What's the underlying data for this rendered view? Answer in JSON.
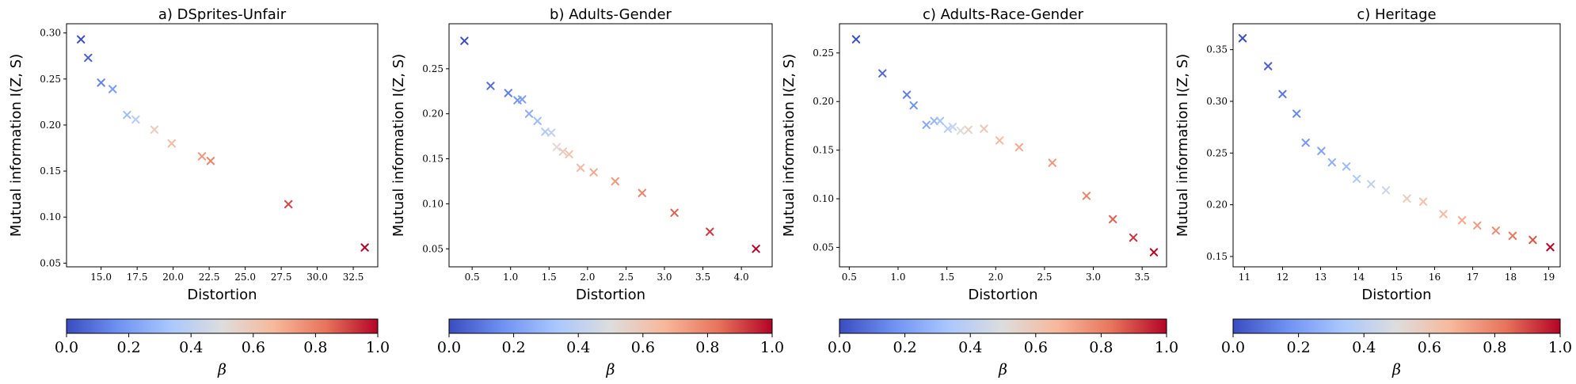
{
  "chart_data": [
    {
      "type": "scatter",
      "title": "a) DSprites-Unfair",
      "xlabel": "Distortion",
      "ylabel": "Mutual information I(Z, S)",
      "xlim": [
        12.6,
        34.2
      ],
      "ylim": [
        0.046,
        0.31
      ],
      "xticks": [
        15.0,
        17.5,
        20.0,
        22.5,
        25.0,
        27.5,
        30.0,
        32.5
      ],
      "xtick_labels": [
        "15.0",
        "17.5",
        "20.0",
        "22.5",
        "25.0",
        "27.5",
        "30.0",
        "32.5"
      ],
      "yticks": [
        0.05,
        0.1,
        0.15,
        0.2,
        0.25,
        0.3
      ],
      "ytick_labels": [
        "0.05",
        "0.10",
        "0.15",
        "0.20",
        "0.25",
        "0.30"
      ],
      "marker": "x",
      "points": [
        {
          "x": 13.6,
          "y": 0.293,
          "beta": 0.0
        },
        {
          "x": 14.1,
          "y": 0.273,
          "beta": 0.05
        },
        {
          "x": 15.0,
          "y": 0.246,
          "beta": 0.13
        },
        {
          "x": 15.8,
          "y": 0.239,
          "beta": 0.2
        },
        {
          "x": 16.8,
          "y": 0.211,
          "beta": 0.3
        },
        {
          "x": 17.4,
          "y": 0.206,
          "beta": 0.38
        },
        {
          "x": 18.7,
          "y": 0.195,
          "beta": 0.58
        },
        {
          "x": 19.9,
          "y": 0.18,
          "beta": 0.65
        },
        {
          "x": 22.0,
          "y": 0.166,
          "beta": 0.75
        },
        {
          "x": 22.6,
          "y": 0.161,
          "beta": 0.8
        },
        {
          "x": 28.0,
          "y": 0.114,
          "beta": 0.9
        },
        {
          "x": 33.3,
          "y": 0.067,
          "beta": 1.0
        }
      ]
    },
    {
      "type": "scatter",
      "title": "b) Adults-Gender",
      "xlabel": "Distortion",
      "ylabel": "Mutual information I(Z, S)",
      "xlim": [
        0.2,
        4.4
      ],
      "ylim": [
        0.03,
        0.3
      ],
      "xticks": [
        0.5,
        1.0,
        1.5,
        2.0,
        2.5,
        3.0,
        3.5,
        4.0
      ],
      "xtick_labels": [
        "0.5",
        "1.0",
        "1.5",
        "2.0",
        "2.5",
        "3.0",
        "3.5",
        "4.0"
      ],
      "yticks": [
        0.05,
        0.1,
        0.15,
        0.2,
        0.25
      ],
      "ytick_labels": [
        "0.05",
        "0.10",
        "0.15",
        "0.20",
        "0.25"
      ],
      "marker": "x",
      "points": [
        {
          "x": 0.4,
          "y": 0.281,
          "beta": 0.0
        },
        {
          "x": 0.74,
          "y": 0.231,
          "beta": 0.08
        },
        {
          "x": 0.97,
          "y": 0.223,
          "beta": 0.12
        },
        {
          "x": 1.09,
          "y": 0.215,
          "beta": 0.18
        },
        {
          "x": 1.15,
          "y": 0.216,
          "beta": 0.2
        },
        {
          "x": 1.24,
          "y": 0.2,
          "beta": 0.25
        },
        {
          "x": 1.35,
          "y": 0.192,
          "beta": 0.3
        },
        {
          "x": 1.45,
          "y": 0.18,
          "beta": 0.35
        },
        {
          "x": 1.53,
          "y": 0.179,
          "beta": 0.4
        },
        {
          "x": 1.6,
          "y": 0.163,
          "beta": 0.52
        },
        {
          "x": 1.68,
          "y": 0.158,
          "beta": 0.58
        },
        {
          "x": 1.76,
          "y": 0.155,
          "beta": 0.62
        },
        {
          "x": 1.91,
          "y": 0.14,
          "beta": 0.66
        },
        {
          "x": 2.08,
          "y": 0.135,
          "beta": 0.7
        },
        {
          "x": 2.36,
          "y": 0.125,
          "beta": 0.75
        },
        {
          "x": 2.71,
          "y": 0.112,
          "beta": 0.8
        },
        {
          "x": 3.13,
          "y": 0.09,
          "beta": 0.86
        },
        {
          "x": 3.59,
          "y": 0.069,
          "beta": 0.92
        },
        {
          "x": 4.19,
          "y": 0.05,
          "beta": 1.0
        }
      ]
    },
    {
      "type": "scatter",
      "title": "c) Adults-Race-Gender",
      "xlabel": "Distortion",
      "ylabel": "Mutual information I(Z, S)",
      "xlim": [
        0.4,
        3.75
      ],
      "ylim": [
        0.03,
        0.28
      ],
      "xticks": [
        0.5,
        1.0,
        1.5,
        2.0,
        2.5,
        3.0,
        3.5
      ],
      "xtick_labels": [
        "0.5",
        "1.0",
        "1.5",
        "2.0",
        "2.5",
        "3.0",
        "3.5"
      ],
      "yticks": [
        0.05,
        0.1,
        0.15,
        0.2,
        0.25
      ],
      "ytick_labels": [
        "0.05",
        "0.10",
        "0.15",
        "0.20",
        "0.25"
      ],
      "marker": "x",
      "points": [
        {
          "x": 0.57,
          "y": 0.264,
          "beta": 0.0
        },
        {
          "x": 0.84,
          "y": 0.229,
          "beta": 0.07
        },
        {
          "x": 1.09,
          "y": 0.207,
          "beta": 0.12
        },
        {
          "x": 1.16,
          "y": 0.196,
          "beta": 0.17
        },
        {
          "x": 1.29,
          "y": 0.176,
          "beta": 0.24
        },
        {
          "x": 1.37,
          "y": 0.18,
          "beta": 0.28
        },
        {
          "x": 1.43,
          "y": 0.18,
          "beta": 0.32
        },
        {
          "x": 1.51,
          "y": 0.172,
          "beta": 0.37
        },
        {
          "x": 1.56,
          "y": 0.174,
          "beta": 0.42
        },
        {
          "x": 1.64,
          "y": 0.17,
          "beta": 0.5
        },
        {
          "x": 1.72,
          "y": 0.171,
          "beta": 0.56
        },
        {
          "x": 1.88,
          "y": 0.172,
          "beta": 0.6
        },
        {
          "x": 2.04,
          "y": 0.16,
          "beta": 0.66
        },
        {
          "x": 2.24,
          "y": 0.153,
          "beta": 0.7
        },
        {
          "x": 2.58,
          "y": 0.137,
          "beta": 0.75
        },
        {
          "x": 2.93,
          "y": 0.103,
          "beta": 0.8
        },
        {
          "x": 3.2,
          "y": 0.079,
          "beta": 0.86
        },
        {
          "x": 3.41,
          "y": 0.06,
          "beta": 0.93
        },
        {
          "x": 3.62,
          "y": 0.045,
          "beta": 1.0
        }
      ]
    },
    {
      "type": "scatter",
      "title": "c) Heritage",
      "xlabel": "Distortion",
      "ylabel": "Mutual information I(Z, S)",
      "xlim": [
        10.7,
        19.3
      ],
      "ylim": [
        0.14,
        0.375
      ],
      "xticks": [
        11,
        12,
        13,
        14,
        15,
        16,
        17,
        18,
        19
      ],
      "xtick_labels": [
        "11",
        "12",
        "13",
        "14",
        "15",
        "16",
        "17",
        "18",
        "19"
      ],
      "yticks": [
        0.15,
        0.2,
        0.25,
        0.3,
        0.35
      ],
      "ytick_labels": [
        "0.15",
        "0.20",
        "0.25",
        "0.30",
        "0.35"
      ],
      "marker": "x",
      "points": [
        {
          "x": 10.95,
          "y": 0.361,
          "beta": 0.0
        },
        {
          "x": 11.62,
          "y": 0.334,
          "beta": 0.05
        },
        {
          "x": 12.0,
          "y": 0.307,
          "beta": 0.1
        },
        {
          "x": 12.37,
          "y": 0.288,
          "beta": 0.14
        },
        {
          "x": 12.61,
          "y": 0.26,
          "beta": 0.18
        },
        {
          "x": 13.02,
          "y": 0.252,
          "beta": 0.22
        },
        {
          "x": 13.3,
          "y": 0.241,
          "beta": 0.26
        },
        {
          "x": 13.68,
          "y": 0.237,
          "beta": 0.3
        },
        {
          "x": 13.95,
          "y": 0.225,
          "beta": 0.35
        },
        {
          "x": 14.33,
          "y": 0.22,
          "beta": 0.4
        },
        {
          "x": 14.72,
          "y": 0.214,
          "beta": 0.45
        },
        {
          "x": 15.27,
          "y": 0.206,
          "beta": 0.58
        },
        {
          "x": 15.7,
          "y": 0.203,
          "beta": 0.62
        },
        {
          "x": 16.23,
          "y": 0.191,
          "beta": 0.66
        },
        {
          "x": 16.72,
          "y": 0.185,
          "beta": 0.7
        },
        {
          "x": 17.12,
          "y": 0.18,
          "beta": 0.74
        },
        {
          "x": 17.61,
          "y": 0.175,
          "beta": 0.78
        },
        {
          "x": 18.05,
          "y": 0.17,
          "beta": 0.82
        },
        {
          "x": 18.58,
          "y": 0.166,
          "beta": 0.88
        },
        {
          "x": 19.04,
          "y": 0.159,
          "beta": 1.0
        }
      ]
    }
  ],
  "colorbar": {
    "colormap": "coolwarm",
    "colors": [
      "#3b4cc0",
      "#6f92f3",
      "#aac7fd",
      "#dddddd",
      "#f7b89c",
      "#e7745b",
      "#b40426"
    ],
    "darkest_end": "#67001f",
    "ticks": [
      0.0,
      0.2,
      0.4,
      0.6,
      0.8,
      1.0
    ],
    "tick_labels": [
      "0.0",
      "0.2",
      "0.4",
      "0.6",
      "0.8",
      "1.0"
    ],
    "label": "β"
  }
}
